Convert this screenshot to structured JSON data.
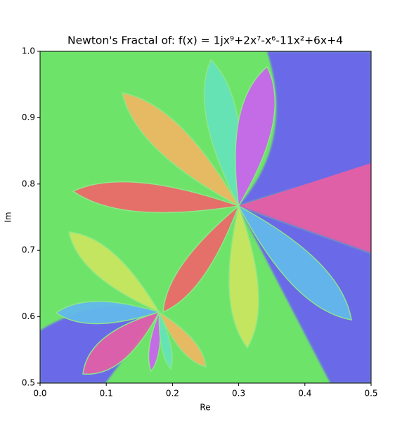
{
  "chart_data": {
    "type": "fractal",
    "title": "Newton's Fractal of: f(x) = 1jx⁹+2x⁷-x⁶-11x²+6x+4",
    "x_label": "Re",
    "y_label": "Im",
    "xlim": [
      0,
      0.5
    ],
    "ylim": [
      0.5,
      1
    ],
    "xticks": [
      {
        "value": 0,
        "label": "0.0"
      },
      0.1,
      0.2,
      0.3,
      0.4,
      0.5
    ],
    "yticks": [
      0.5,
      0.6,
      0.7,
      0.8,
      0.9,
      {
        "value": 1,
        "label": "1.0"
      }
    ]
  }
}
